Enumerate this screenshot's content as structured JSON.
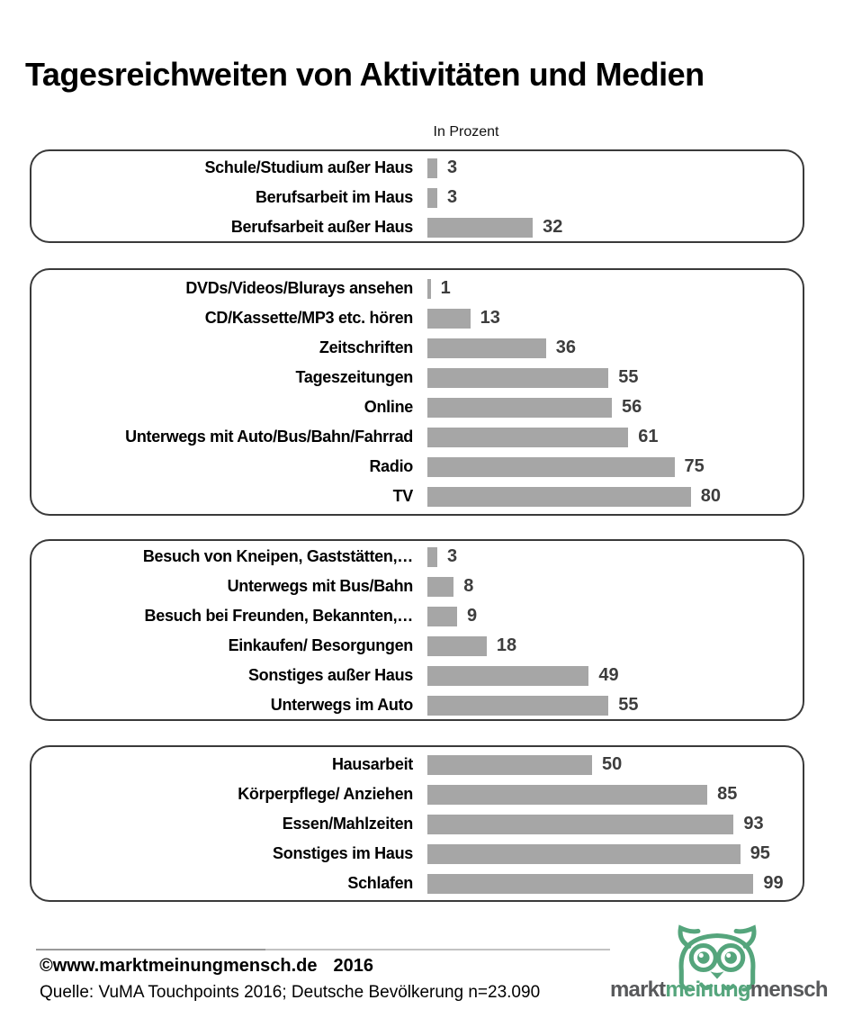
{
  "page": {
    "title": "Tagesreichweiten von Aktivitäten und Medien",
    "subtitle": "In Prozent"
  },
  "chart_data": {
    "type": "bar",
    "orientation": "horizontal",
    "value_unit": "percent",
    "xlim": [
      0,
      100
    ],
    "bar_color": "#a6a6a6",
    "groups": [
      {
        "items": [
          {
            "label": "Schule/Studium außer Haus",
            "value": 3
          },
          {
            "label": "Berufsarbeit im Haus",
            "value": 3
          },
          {
            "label": "Berufsarbeit außer Haus",
            "value": 32
          }
        ]
      },
      {
        "items": [
          {
            "label": "DVDs/Videos/Blurays ansehen",
            "value": 1
          },
          {
            "label": "CD/Kassette/MP3 etc. hören",
            "value": 13
          },
          {
            "label": "Zeitschriften",
            "value": 36
          },
          {
            "label": "Tageszeitungen",
            "value": 55
          },
          {
            "label": "Online",
            "value": 56
          },
          {
            "label": "Unterwegs mit Auto/Bus/Bahn/Fahrrad",
            "value": 61
          },
          {
            "label": "Radio",
            "value": 75
          },
          {
            "label": "TV",
            "value": 80
          }
        ]
      },
      {
        "items": [
          {
            "label": "Besuch von Kneipen, Gaststätten,…",
            "value": 3
          },
          {
            "label": "Unterwegs mit Bus/Bahn",
            "value": 8
          },
          {
            "label": "Besuch bei Freunden, Bekannten,…",
            "value": 9
          },
          {
            "label": "Einkaufen/ Besorgungen",
            "value": 18
          },
          {
            "label": "Sonstiges außer Haus",
            "value": 49
          },
          {
            "label": "Unterwegs im Auto",
            "value": 55
          }
        ]
      },
      {
        "items": [
          {
            "label": "Hausarbeit",
            "value": 50
          },
          {
            "label": "Körperpflege/ Anziehen",
            "value": 85
          },
          {
            "label": "Essen/Mahlzeiten",
            "value": 93
          },
          {
            "label": "Sonstiges im Haus",
            "value": 95
          },
          {
            "label": "Schlafen",
            "value": 99
          }
        ]
      }
    ]
  },
  "footer": {
    "copyright": "©www.marktmeinungmensch.de",
    "year": "2016",
    "source": "Quelle: VuMA Touchpoints 2016; Deutsche Bevölkerung n=23.090"
  },
  "logo": {
    "icon": "owl-icon",
    "part1": "markt",
    "part2": "meinung",
    "part3": "mensch",
    "green": "#55a57c",
    "gray": "#58595b"
  }
}
